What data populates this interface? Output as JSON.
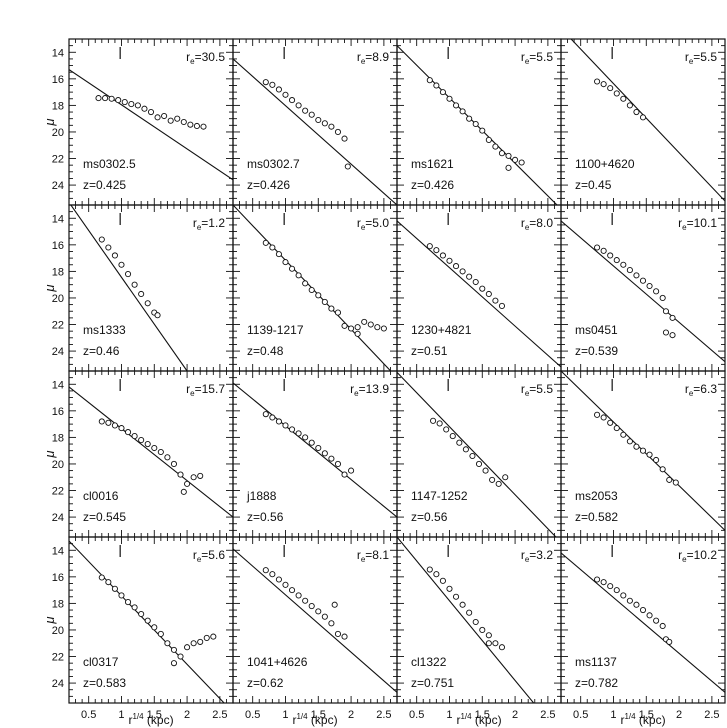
{
  "figure": {
    "y_label": "μ",
    "x_label": "r",
    "x_label_exp": "1/4",
    "x_label_unit": "(kpc)"
  },
  "chart_data": {
    "type": "scatter",
    "grid": false,
    "layout_rows": 4,
    "layout_cols": 4,
    "xlim": [
      0.2,
      2.7
    ],
    "ylim": [
      25.5,
      13.0
    ],
    "x_ticks_major": [
      0.5,
      1,
      1.5,
      2,
      2.5
    ],
    "x_tick_labels": [
      "0.5",
      "1",
      "1.5",
      "2",
      "2.5"
    ],
    "y_ticks_major": [
      14,
      16,
      18,
      20,
      22,
      24
    ],
    "y_tick_labels": [
      "14",
      "16",
      "18",
      "20",
      "22",
      "24"
    ],
    "panels": [
      {
        "name": "ms0302.5",
        "z": "z=0.425",
        "re": "=30.5",
        "marker_x": 0.98,
        "line": [
          [
            0.2,
            15.3
          ],
          [
            2.7,
            23.6
          ]
        ],
        "points": [
          [
            0.65,
            17.45
          ],
          [
            0.75,
            17.45
          ],
          [
            0.85,
            17.5
          ],
          [
            0.95,
            17.6
          ],
          [
            1.05,
            17.75
          ],
          [
            1.15,
            17.9
          ],
          [
            1.25,
            18.0
          ],
          [
            1.35,
            18.25
          ],
          [
            1.45,
            18.5
          ],
          [
            1.55,
            18.9
          ],
          [
            1.65,
            18.8
          ],
          [
            1.75,
            19.15
          ],
          [
            1.85,
            19.0
          ],
          [
            1.95,
            19.25
          ],
          [
            2.05,
            19.45
          ],
          [
            2.15,
            19.55
          ],
          [
            2.25,
            19.6
          ]
        ]
      },
      {
        "name": "ms0302.7",
        "z": "z=0.426",
        "re": "=8.9",
        "marker_x": 0.98,
        "line": [
          [
            0.2,
            14.5
          ],
          [
            2.7,
            25.5
          ]
        ],
        "points": [
          [
            0.7,
            16.25
          ],
          [
            0.8,
            16.45
          ],
          [
            0.9,
            16.8
          ],
          [
            1.0,
            17.2
          ],
          [
            1.1,
            17.6
          ],
          [
            1.2,
            18.0
          ],
          [
            1.3,
            18.4
          ],
          [
            1.4,
            18.7
          ],
          [
            1.5,
            19.1
          ],
          [
            1.6,
            19.35
          ],
          [
            1.7,
            19.6
          ],
          [
            1.8,
            20.0
          ],
          [
            1.9,
            20.5
          ],
          [
            1.95,
            22.6
          ]
        ]
      },
      {
        "name": "ms1621",
        "z": "z=0.426",
        "re": "=5.5",
        "marker_x": 0.98,
        "line": [
          [
            0.2,
            13.5
          ],
          [
            2.7,
            25.8
          ]
        ],
        "points": [
          [
            0.7,
            16.1
          ],
          [
            0.8,
            16.5
          ],
          [
            0.9,
            17.0
          ],
          [
            1.0,
            17.5
          ],
          [
            1.1,
            18.0
          ],
          [
            1.2,
            18.45
          ],
          [
            1.3,
            19.0
          ],
          [
            1.4,
            19.4
          ],
          [
            1.5,
            19.9
          ],
          [
            1.6,
            20.6
          ],
          [
            1.7,
            21.1
          ],
          [
            1.8,
            21.6
          ],
          [
            1.9,
            21.8
          ],
          [
            2.0,
            22.1
          ],
          [
            2.1,
            22.3
          ],
          [
            1.9,
            22.7
          ]
        ]
      },
      {
        "name": "1100+4620",
        "z": "z=0.45",
        "re": "=5.5",
        "marker_x": 0.98,
        "line": [
          [
            0.2,
            12.2
          ],
          [
            2.7,
            25.2
          ]
        ],
        "points": [
          [
            0.75,
            16.2
          ],
          [
            0.85,
            16.4
          ],
          [
            0.95,
            16.7
          ],
          [
            1.05,
            17.1
          ],
          [
            1.15,
            17.5
          ],
          [
            1.25,
            18.0
          ],
          [
            1.35,
            18.5
          ],
          [
            1.45,
            18.9
          ]
        ]
      },
      {
        "name": "ms1333",
        "z": "z=0.46",
        "re": "=1.2",
        "marker_x": 0.98,
        "line": [
          [
            0.2,
            12.8
          ],
          [
            2.0,
            25.5
          ]
        ],
        "points": [
          [
            0.7,
            15.6
          ],
          [
            0.8,
            16.2
          ],
          [
            0.9,
            16.8
          ],
          [
            1.0,
            17.5
          ],
          [
            1.1,
            18.2
          ],
          [
            1.2,
            19.0
          ],
          [
            1.3,
            19.7
          ],
          [
            1.4,
            20.4
          ],
          [
            1.5,
            21.1
          ],
          [
            1.55,
            21.3
          ]
        ]
      },
      {
        "name": "1139-1217",
        "z": "z=0.48",
        "re": "=5.0",
        "marker_x": 0.98,
        "line": [
          [
            0.2,
            13.0
          ],
          [
            2.7,
            26.0
          ]
        ],
        "points": [
          [
            0.7,
            15.85
          ],
          [
            0.8,
            16.2
          ],
          [
            0.9,
            16.7
          ],
          [
            1.0,
            17.3
          ],
          [
            1.1,
            17.8
          ],
          [
            1.2,
            18.3
          ],
          [
            1.3,
            18.9
          ],
          [
            1.4,
            19.4
          ],
          [
            1.5,
            19.8
          ],
          [
            1.6,
            20.3
          ],
          [
            1.7,
            20.8
          ],
          [
            1.8,
            21.1
          ],
          [
            1.9,
            22.1
          ],
          [
            2.0,
            22.3
          ],
          [
            2.1,
            22.2
          ],
          [
            2.2,
            21.8
          ],
          [
            2.3,
            22.0
          ],
          [
            2.4,
            22.2
          ],
          [
            2.5,
            22.3
          ],
          [
            2.1,
            22.7
          ]
        ]
      },
      {
        "name": "1230+4821",
        "z": "z=0.51",
        "re": "=8.0",
        "marker_x": 0.98,
        "line": [
          [
            0.2,
            14.2
          ],
          [
            2.7,
            25.2
          ]
        ],
        "points": [
          [
            0.7,
            16.1
          ],
          [
            0.8,
            16.4
          ],
          [
            0.9,
            16.8
          ],
          [
            1.0,
            17.2
          ],
          [
            1.1,
            17.6
          ],
          [
            1.2,
            18.0
          ],
          [
            1.3,
            18.4
          ],
          [
            1.4,
            18.8
          ],
          [
            1.5,
            19.3
          ],
          [
            1.6,
            19.7
          ],
          [
            1.7,
            20.2
          ],
          [
            1.8,
            20.6
          ]
        ]
      },
      {
        "name": "ms0451",
        "z": "z=0.539",
        "re": "=10.1",
        "marker_x": 0.98,
        "line": [
          [
            0.2,
            14.2
          ],
          [
            2.7,
            24.8
          ]
        ],
        "points": [
          [
            0.75,
            16.2
          ],
          [
            0.85,
            16.45
          ],
          [
            0.95,
            16.8
          ],
          [
            1.05,
            17.15
          ],
          [
            1.15,
            17.5
          ],
          [
            1.25,
            17.9
          ],
          [
            1.35,
            18.3
          ],
          [
            1.45,
            18.7
          ],
          [
            1.55,
            19.1
          ],
          [
            1.65,
            19.5
          ],
          [
            1.75,
            20.0
          ],
          [
            1.8,
            21.0
          ],
          [
            1.9,
            21.5
          ],
          [
            1.8,
            22.6
          ],
          [
            1.9,
            22.8
          ]
        ]
      },
      {
        "name": "cl0016",
        "z": "z=0.545",
        "re": "=15.7",
        "marker_x": 0.98,
        "line": [
          [
            0.2,
            14.2
          ],
          [
            2.7,
            24.0
          ]
        ],
        "points": [
          [
            0.7,
            16.8
          ],
          [
            0.8,
            16.9
          ],
          [
            0.9,
            17.1
          ],
          [
            1.0,
            17.3
          ],
          [
            1.1,
            17.6
          ],
          [
            1.2,
            17.9
          ],
          [
            1.3,
            18.2
          ],
          [
            1.4,
            18.5
          ],
          [
            1.5,
            18.8
          ],
          [
            1.6,
            19.1
          ],
          [
            1.7,
            19.5
          ],
          [
            1.8,
            20.0
          ],
          [
            1.9,
            20.8
          ],
          [
            2.0,
            21.5
          ],
          [
            2.1,
            21.0
          ],
          [
            2.2,
            20.9
          ],
          [
            1.95,
            22.1
          ]
        ]
      },
      {
        "name": "j1888",
        "z": "z=0.56",
        "re": "=13.9",
        "marker_x": 0.98,
        "line": [
          [
            0.2,
            13.9
          ],
          [
            2.7,
            24.0
          ]
        ],
        "points": [
          [
            0.7,
            16.25
          ],
          [
            0.8,
            16.5
          ],
          [
            0.9,
            16.8
          ],
          [
            1.0,
            17.1
          ],
          [
            1.1,
            17.4
          ],
          [
            1.2,
            17.7
          ],
          [
            1.3,
            18.0
          ],
          [
            1.4,
            18.4
          ],
          [
            1.5,
            18.8
          ],
          [
            1.6,
            19.2
          ],
          [
            1.7,
            19.6
          ],
          [
            1.8,
            20.0
          ],
          [
            1.9,
            20.8
          ],
          [
            2.0,
            20.5
          ]
        ]
      },
      {
        "name": "1147-1252",
        "z": "z=0.56",
        "re": "=5.5",
        "marker_x": 0.98,
        "line": [
          [
            0.2,
            13.1
          ],
          [
            2.7,
            25.9
          ]
        ],
        "points": [
          [
            0.75,
            16.75
          ],
          [
            0.85,
            16.95
          ],
          [
            0.95,
            17.4
          ],
          [
            1.05,
            17.9
          ],
          [
            1.15,
            18.4
          ],
          [
            1.25,
            18.9
          ],
          [
            1.35,
            19.4
          ],
          [
            1.45,
            20.0
          ],
          [
            1.55,
            20.5
          ],
          [
            1.65,
            21.2
          ],
          [
            1.75,
            21.5
          ],
          [
            1.85,
            21.0
          ]
        ]
      },
      {
        "name": "ms2053",
        "z": "z=0.582",
        "re": "=6.3",
        "marker_x": 0.98,
        "line": [
          [
            0.2,
            13.0
          ],
          [
            2.7,
            25.0
          ]
        ],
        "points": [
          [
            0.75,
            16.3
          ],
          [
            0.85,
            16.5
          ],
          [
            0.95,
            16.9
          ],
          [
            1.05,
            17.3
          ],
          [
            1.15,
            17.8
          ],
          [
            1.25,
            18.3
          ],
          [
            1.35,
            18.7
          ],
          [
            1.45,
            19.0
          ],
          [
            1.55,
            19.3
          ],
          [
            1.65,
            19.7
          ],
          [
            1.75,
            20.4
          ],
          [
            1.85,
            21.2
          ],
          [
            1.95,
            21.4
          ]
        ]
      },
      {
        "name": "cl0317",
        "z": "z=0.583",
        "re": "=5.6",
        "marker_x": 0.98,
        "line": [
          [
            0.2,
            13.3
          ],
          [
            2.7,
            26.2
          ]
        ],
        "points": [
          [
            0.7,
            16.05
          ],
          [
            0.8,
            16.4
          ],
          [
            0.9,
            16.9
          ],
          [
            1.0,
            17.4
          ],
          [
            1.1,
            17.9
          ],
          [
            1.2,
            18.3
          ],
          [
            1.3,
            18.8
          ],
          [
            1.4,
            19.3
          ],
          [
            1.5,
            19.8
          ],
          [
            1.6,
            20.3
          ],
          [
            1.7,
            21.0
          ],
          [
            1.8,
            21.5
          ],
          [
            1.9,
            22.0
          ],
          [
            2.0,
            21.3
          ],
          [
            2.1,
            21.0
          ],
          [
            2.2,
            20.9
          ],
          [
            2.3,
            20.6
          ],
          [
            2.4,
            20.5
          ],
          [
            1.8,
            22.5
          ]
        ]
      },
      {
        "name": "1041+4626",
        "z": "z=0.62",
        "re": "=8.1",
        "marker_x": 0.98,
        "line": [
          [
            0.2,
            13.9
          ],
          [
            2.7,
            24.7
          ]
        ],
        "points": [
          [
            0.7,
            15.5
          ],
          [
            0.8,
            15.8
          ],
          [
            0.9,
            16.2
          ],
          [
            1.0,
            16.6
          ],
          [
            1.1,
            17.0
          ],
          [
            1.2,
            17.4
          ],
          [
            1.3,
            17.8
          ],
          [
            1.4,
            18.2
          ],
          [
            1.5,
            18.6
          ],
          [
            1.6,
            19.0
          ],
          [
            1.7,
            19.5
          ],
          [
            1.75,
            18.1
          ],
          [
            1.8,
            20.3
          ],
          [
            1.9,
            20.5
          ]
        ]
      },
      {
        "name": "cl1322",
        "z": "z=0.751",
        "re": "=3.2",
        "marker_x": 0.98,
        "line": [
          [
            0.2,
            13.0
          ],
          [
            2.7,
            28.0
          ]
        ],
        "points": [
          [
            0.7,
            15.45
          ],
          [
            0.8,
            15.8
          ],
          [
            0.9,
            16.3
          ],
          [
            1.0,
            16.9
          ],
          [
            1.1,
            17.5
          ],
          [
            1.2,
            18.1
          ],
          [
            1.3,
            18.7
          ],
          [
            1.4,
            19.4
          ],
          [
            1.5,
            20.0
          ],
          [
            1.6,
            20.4
          ],
          [
            1.7,
            21.0
          ],
          [
            1.8,
            21.3
          ],
          [
            1.6,
            21.0
          ]
        ]
      },
      {
        "name": "ms1137",
        "z": "z=0.782",
        "re": "=10.2",
        "marker_x": 0.98,
        "line": [
          [
            0.2,
            14.2
          ],
          [
            2.7,
            24.7
          ]
        ],
        "points": [
          [
            0.75,
            16.2
          ],
          [
            0.85,
            16.4
          ],
          [
            0.95,
            16.7
          ],
          [
            1.05,
            17.0
          ],
          [
            1.15,
            17.4
          ],
          [
            1.25,
            17.8
          ],
          [
            1.35,
            18.1
          ],
          [
            1.45,
            18.5
          ],
          [
            1.55,
            18.9
          ],
          [
            1.65,
            19.3
          ],
          [
            1.75,
            19.7
          ],
          [
            1.8,
            20.7
          ],
          [
            1.85,
            20.9
          ]
        ]
      }
    ]
  }
}
